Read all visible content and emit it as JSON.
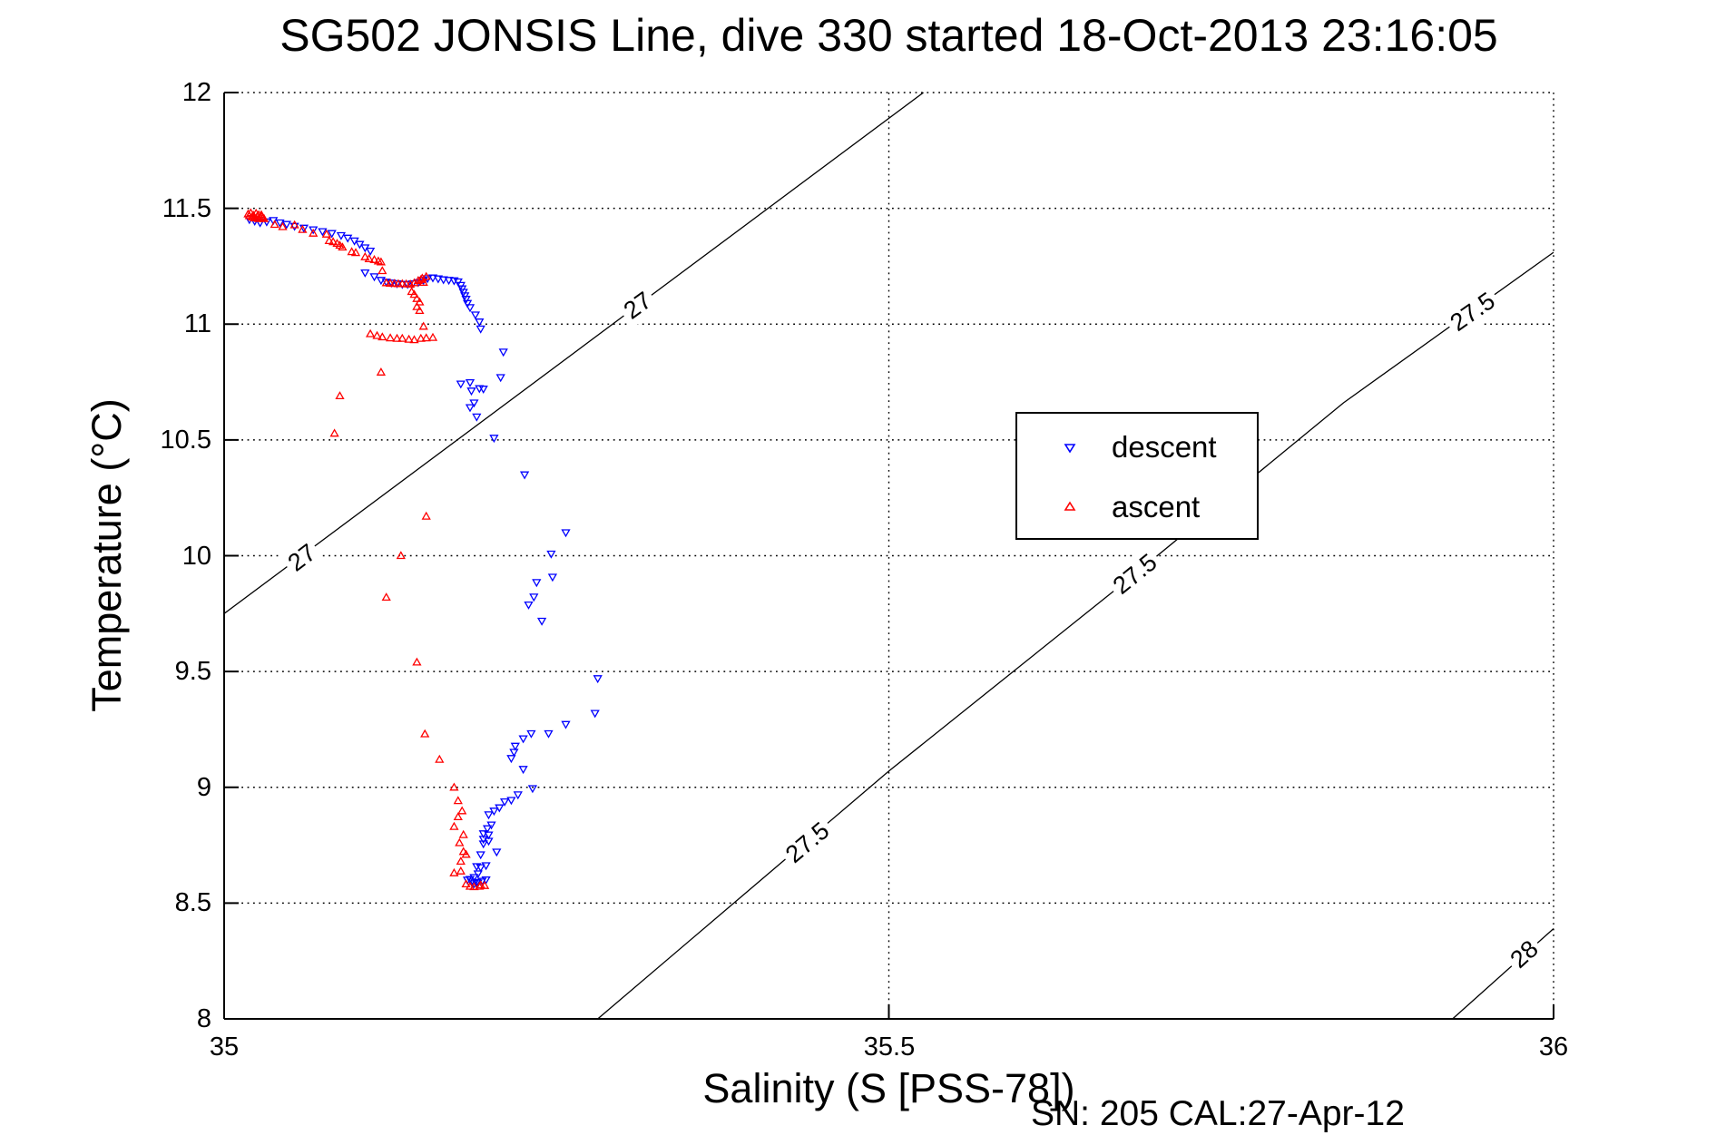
{
  "figure": {
    "title": "SG502 JONSIS Line, dive 330 started 18-Oct-2013 23:16:05",
    "annotation": "SN: 205  CAL:27-Apr-12"
  },
  "chart_data": {
    "type": "scatter",
    "title": "SG502 JONSIS Line, dive 330 started 18-Oct-2013 23:16:05",
    "xlabel": "Salinity (S [PSS-78])",
    "ylabel": "Temperature (°C)",
    "annotation": "SN: 205  CAL:27-Apr-12",
    "xlim": [
      35,
      36
    ],
    "ylim": [
      8,
      12
    ],
    "grid": "dotted",
    "x_ticks": {
      "values": [
        35,
        35.5,
        36
      ],
      "labels": [
        "35",
        "35.5",
        "36"
      ]
    },
    "y_ticks": {
      "values": [
        8,
        8.5,
        9,
        9.5,
        10,
        10.5,
        11,
        11.5,
        12
      ],
      "labels": [
        "8",
        "8.5",
        "9",
        "9.5",
        "10",
        "10.5",
        "11",
        "11.5",
        "12"
      ]
    },
    "legend": {
      "position": "inside-right",
      "items": [
        {
          "label": "descent",
          "marker": "triangle-down",
          "color": "#0000ff"
        },
        {
          "label": "ascent",
          "marker": "triangle-up",
          "color": "#ff0000"
        }
      ]
    },
    "contours": [
      {
        "level": "27",
        "points": [
          [
            35.0,
            9.75
          ],
          [
            35.526,
            12.0
          ]
        ],
        "labels": [
          {
            "text": "27",
            "s": 35.059,
            "t": 9.99,
            "angle": -37
          },
          {
            "text": "27",
            "s": 35.311,
            "t": 11.08,
            "angle": -36
          }
        ]
      },
      {
        "level": "27.5",
        "points": [
          [
            35.281,
            8.0
          ],
          [
            35.5,
            9.07
          ],
          [
            35.685,
            9.92
          ],
          [
            35.842,
            10.66
          ],
          [
            36.0,
            11.31
          ]
        ],
        "labels": [
          {
            "text": "27.5",
            "s": 35.439,
            "t": 8.76,
            "angle": -40
          },
          {
            "text": "27.5",
            "s": 35.685,
            "t": 9.92,
            "angle": -39
          },
          {
            "text": "27.5",
            "s": 35.939,
            "t": 11.05,
            "angle": -35
          }
        ]
      },
      {
        "level": "28",
        "points": [
          [
            35.924,
            8.0
          ],
          [
            36.0,
            8.39
          ]
        ],
        "labels": [
          {
            "text": "28",
            "s": 35.978,
            "t": 8.28,
            "angle": -42
          }
        ]
      }
    ],
    "series": [
      {
        "name": "descent",
        "marker": "triangle-down",
        "color": "#0000ff",
        "points": [
          [
            35.019,
            11.452
          ],
          [
            35.023,
            11.445
          ],
          [
            35.027,
            11.438
          ],
          [
            35.032,
            11.442
          ],
          [
            35.037,
            11.448
          ],
          [
            35.042,
            11.438
          ],
          [
            35.047,
            11.431
          ],
          [
            35.053,
            11.423
          ],
          [
            35.06,
            11.415
          ],
          [
            35.067,
            11.408
          ],
          [
            35.074,
            11.4
          ],
          [
            35.081,
            11.392
          ],
          [
            35.088,
            11.383
          ],
          [
            35.093,
            11.372
          ],
          [
            35.098,
            11.36
          ],
          [
            35.102,
            11.345
          ],
          [
            35.106,
            11.33
          ],
          [
            35.11,
            11.316
          ],
          [
            35.106,
            11.222
          ],
          [
            35.113,
            11.205
          ],
          [
            35.118,
            11.19
          ],
          [
            35.122,
            11.182
          ],
          [
            35.126,
            11.178
          ],
          [
            35.13,
            11.175
          ],
          [
            35.134,
            11.172
          ],
          [
            35.138,
            11.172
          ],
          [
            35.142,
            11.175
          ],
          [
            35.146,
            11.18
          ],
          [
            35.15,
            11.19
          ],
          [
            35.153,
            11.197
          ],
          [
            35.157,
            11.2
          ],
          [
            35.161,
            11.196
          ],
          [
            35.165,
            11.192
          ],
          [
            35.169,
            11.19
          ],
          [
            35.173,
            11.188
          ],
          [
            35.176,
            11.183
          ],
          [
            35.178,
            11.168
          ],
          [
            35.179,
            11.153
          ],
          [
            35.18,
            11.138
          ],
          [
            35.181,
            11.123
          ],
          [
            35.182,
            11.108
          ],
          [
            35.183,
            11.09
          ],
          [
            35.185,
            11.072
          ],
          [
            35.189,
            11.04
          ],
          [
            35.192,
            11.01
          ],
          [
            35.193,
            10.98
          ],
          [
            35.21,
            10.88
          ],
          [
            35.208,
            10.77
          ],
          [
            35.185,
            10.748
          ],
          [
            35.178,
            10.742
          ],
          [
            35.186,
            10.712
          ],
          [
            35.192,
            10.722
          ],
          [
            35.195,
            10.72
          ],
          [
            35.188,
            10.66
          ],
          [
            35.185,
            10.64
          ],
          [
            35.19,
            10.6
          ],
          [
            35.203,
            10.508
          ],
          [
            35.226,
            10.35
          ],
          [
            35.257,
            10.1
          ],
          [
            35.246,
            10.008
          ],
          [
            35.247,
            9.908
          ],
          [
            35.235,
            9.885
          ],
          [
            35.233,
            9.822
          ],
          [
            35.229,
            9.788
          ],
          [
            35.239,
            9.718
          ],
          [
            35.281,
            9.47
          ],
          [
            35.279,
            9.32
          ],
          [
            35.257,
            9.272
          ],
          [
            35.244,
            9.232
          ],
          [
            35.231,
            9.232
          ],
          [
            35.225,
            9.21
          ],
          [
            35.219,
            9.178
          ],
          [
            35.218,
            9.152
          ],
          [
            35.216,
            9.125
          ],
          [
            35.225,
            9.078
          ],
          [
            35.232,
            8.995
          ],
          [
            35.221,
            8.968
          ],
          [
            35.216,
            8.944
          ],
          [
            35.211,
            8.938
          ],
          [
            35.207,
            8.912
          ],
          [
            35.203,
            8.898
          ],
          [
            35.199,
            8.882
          ],
          [
            35.201,
            8.838
          ],
          [
            35.198,
            8.822
          ],
          [
            35.195,
            8.8
          ],
          [
            35.199,
            8.795
          ],
          [
            35.195,
            8.776
          ],
          [
            35.199,
            8.768
          ],
          [
            35.195,
            8.756
          ],
          [
            35.205,
            8.721
          ],
          [
            35.193,
            8.709
          ],
          [
            35.19,
            8.658
          ],
          [
            35.197,
            8.662
          ],
          [
            35.193,
            8.654
          ],
          [
            35.191,
            8.627
          ],
          [
            35.188,
            8.611
          ],
          [
            35.183,
            8.6
          ],
          [
            35.186,
            8.592
          ],
          [
            35.188,
            8.584
          ],
          [
            35.191,
            8.588
          ],
          [
            35.194,
            8.595
          ],
          [
            35.197,
            8.601
          ],
          [
            35.185,
            8.603
          ],
          [
            35.19,
            8.59
          ]
        ]
      },
      {
        "name": "ascent",
        "marker": "triangle-up",
        "color": "#ff0000",
        "points": [
          [
            35.018,
            11.475
          ],
          [
            35.02,
            11.48
          ],
          [
            35.022,
            11.47
          ],
          [
            35.024,
            11.478
          ],
          [
            35.026,
            11.472
          ],
          [
            35.028,
            11.465
          ],
          [
            35.021,
            11.462
          ],
          [
            35.023,
            11.458
          ],
          [
            35.026,
            11.455
          ],
          [
            35.029,
            11.46
          ],
          [
            35.019,
            11.468
          ],
          [
            35.025,
            11.466
          ],
          [
            35.028,
            11.472
          ],
          [
            35.03,
            11.455
          ],
          [
            35.038,
            11.43
          ],
          [
            35.044,
            11.42
          ],
          [
            35.053,
            11.428
          ],
          [
            35.059,
            11.408
          ],
          [
            35.067,
            11.392
          ],
          [
            35.077,
            11.388
          ],
          [
            35.079,
            11.36
          ],
          [
            35.082,
            11.355
          ],
          [
            35.085,
            11.348
          ],
          [
            35.087,
            11.34
          ],
          [
            35.089,
            11.332
          ],
          [
            35.096,
            11.312
          ],
          [
            35.099,
            11.308
          ],
          [
            35.106,
            11.29
          ],
          [
            35.109,
            11.282
          ],
          [
            35.113,
            11.278
          ],
          [
            35.116,
            11.272
          ],
          [
            35.118,
            11.268
          ],
          [
            35.119,
            11.23
          ],
          [
            35.122,
            11.178
          ],
          [
            35.125,
            11.176
          ],
          [
            35.128,
            11.175
          ],
          [
            35.131,
            11.174
          ],
          [
            35.134,
            11.174
          ],
          [
            35.137,
            11.173
          ],
          [
            35.14,
            11.172
          ],
          [
            35.143,
            11.178
          ],
          [
            35.146,
            11.188
          ],
          [
            35.149,
            11.198
          ],
          [
            35.152,
            11.205
          ],
          [
            35.148,
            11.192
          ],
          [
            35.15,
            11.18
          ],
          [
            35.141,
            11.14
          ],
          [
            35.143,
            11.128
          ],
          [
            35.145,
            11.11
          ],
          [
            35.147,
            11.095
          ],
          [
            35.145,
            11.075
          ],
          [
            35.147,
            11.058
          ],
          [
            35.15,
            10.99
          ],
          [
            35.11,
            10.958
          ],
          [
            35.115,
            10.95
          ],
          [
            35.119,
            10.944
          ],
          [
            35.125,
            10.94
          ],
          [
            35.13,
            10.938
          ],
          [
            35.134,
            10.938
          ],
          [
            35.139,
            10.934
          ],
          [
            35.143,
            10.932
          ],
          [
            35.148,
            10.938
          ],
          [
            35.152,
            10.94
          ],
          [
            35.157,
            10.942
          ],
          [
            35.118,
            10.792
          ],
          [
            35.087,
            10.69
          ],
          [
            35.083,
            10.528
          ],
          [
            35.152,
            10.17
          ],
          [
            35.133,
            10.0
          ],
          [
            35.122,
            9.82
          ],
          [
            35.145,
            9.54
          ],
          [
            35.151,
            9.23
          ],
          [
            35.162,
            9.12
          ],
          [
            35.173,
            9.0
          ],
          [
            35.176,
            8.942
          ],
          [
            35.179,
            8.898
          ],
          [
            35.176,
            8.872
          ],
          [
            35.173,
            8.83
          ],
          [
            35.18,
            8.795
          ],
          [
            35.177,
            8.76
          ],
          [
            35.18,
            8.722
          ],
          [
            35.182,
            8.71
          ],
          [
            35.178,
            8.68
          ],
          [
            35.178,
            8.638
          ],
          [
            35.173,
            8.63
          ],
          [
            35.182,
            8.582
          ],
          [
            35.185,
            8.572
          ],
          [
            35.188,
            8.57
          ],
          [
            35.192,
            8.572
          ],
          [
            35.193,
            8.578
          ],
          [
            35.196,
            8.575
          ]
        ]
      }
    ]
  }
}
